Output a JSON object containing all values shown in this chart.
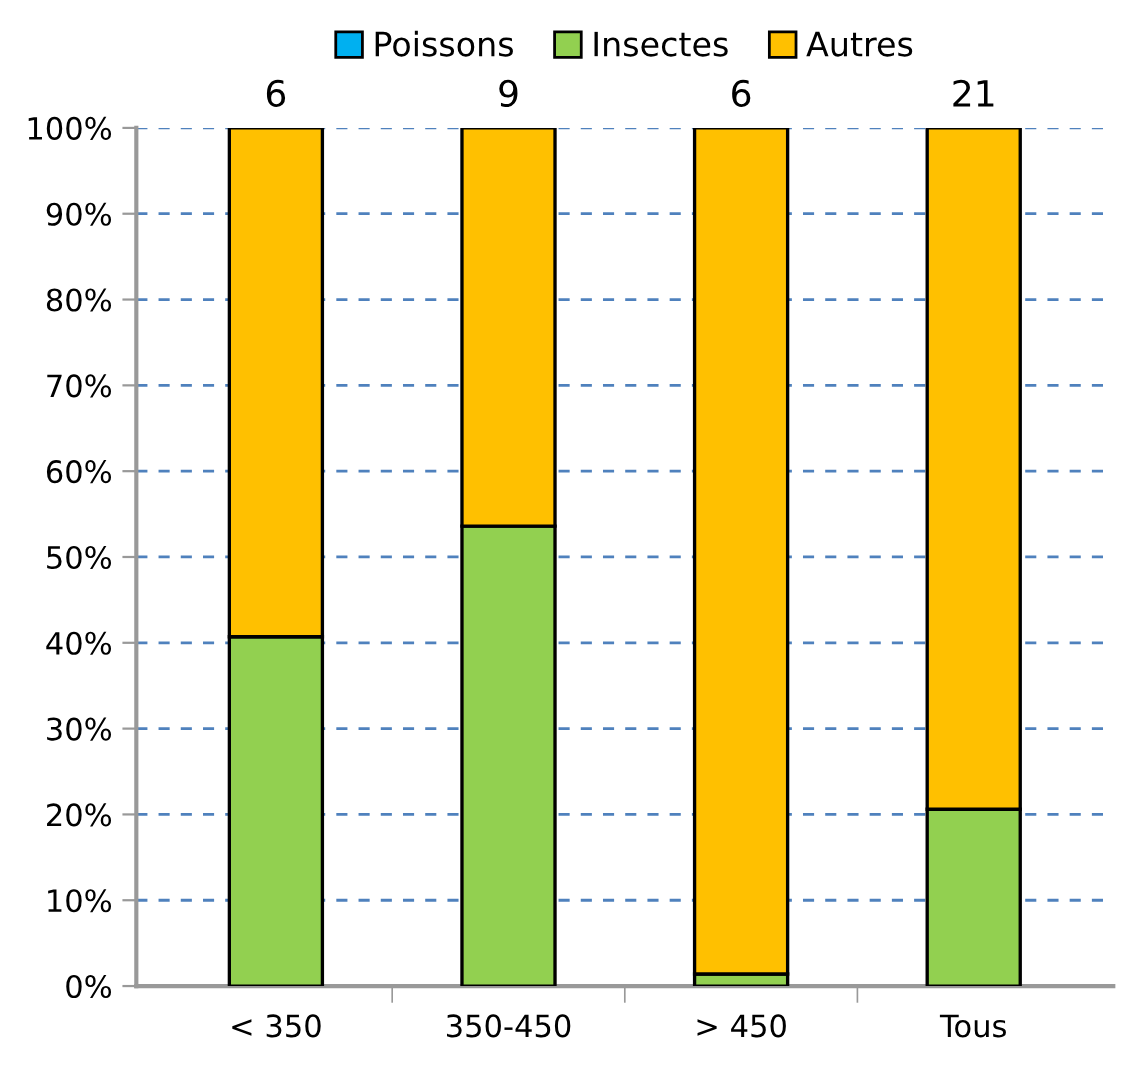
{
  "chart_data": {
    "type": "bar",
    "stacked": true,
    "categories": [
      "< 350",
      "350-450",
      "> 450",
      "Tous"
    ],
    "series": [
      {
        "name": "Poissons",
        "color": "#00b0f0",
        "values": [
          0,
          0,
          0,
          0
        ]
      },
      {
        "name": "Insectes",
        "color": "#92d050",
        "values": [
          40.7,
          53.6,
          1.4,
          20.6
        ]
      },
      {
        "name": "Autres",
        "color": "#ffc000",
        "values": [
          59.3,
          46.4,
          98.6,
          79.4
        ]
      }
    ],
    "annotations": [
      {
        "text": "6",
        "x": "< 350",
        "y": 100
      },
      {
        "text": "9",
        "x": "350-450",
        "y": 100
      },
      {
        "text": "6",
        "x": "> 450",
        "y": 100
      },
      {
        "text": "21",
        "x": "Tous",
        "y": 100
      }
    ],
    "ylim": [
      0,
      100
    ],
    "yticks": [
      {
        "value": 0,
        "label": "0%"
      },
      {
        "value": 10,
        "label": "10%"
      },
      {
        "value": 20,
        "label": "20%"
      },
      {
        "value": 30,
        "label": "30%"
      },
      {
        "value": 40,
        "label": "40%"
      },
      {
        "value": 50,
        "label": "50%"
      },
      {
        "value": 60,
        "label": "60%"
      },
      {
        "value": 70,
        "label": "70%"
      },
      {
        "value": 80,
        "label": "80%"
      },
      {
        "value": 90,
        "label": "90%"
      },
      {
        "value": 100,
        "label": "100%"
      }
    ],
    "grid": "y",
    "legend": "top"
  }
}
